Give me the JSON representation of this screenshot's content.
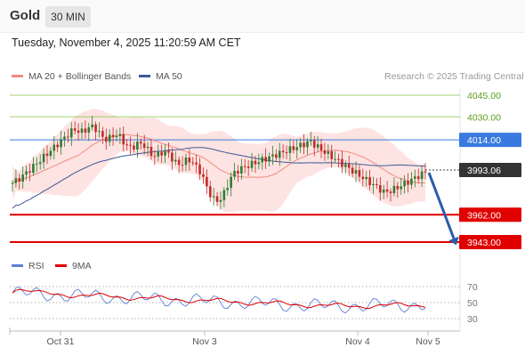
{
  "header": {
    "symbol": "Gold",
    "timeframe": "30 MIN"
  },
  "timestamp": "Tuesday, November 4, 2025 11:20:59 AM CET",
  "legend_main": {
    "ma20_bb": "MA 20 + Bollinger Bands",
    "ma50": "MA 50",
    "ma20_color": "#f28b82",
    "ma50_color": "#3d5a99"
  },
  "credit": "Research © 2025 Trading Central",
  "legend_rsi": {
    "rsi": "RSI",
    "ma9": "9MA",
    "rsi_color": "#5b7fd6",
    "ma9_color": "#e00000"
  },
  "chart_data": [
    {
      "type": "candlestick",
      "x_ticks": [
        "Oct 31",
        "Nov 3",
        "Nov 4",
        "Nov 5"
      ],
      "levels": [
        {
          "value": 4045.0,
          "label": "4045.00",
          "kind": "resistance",
          "color": "#7cbf3a"
        },
        {
          "value": 4030.0,
          "label": "4030.00",
          "kind": "resistance",
          "color": "#7cbf3a"
        },
        {
          "value": 4014.0,
          "label": "4014.00",
          "kind": "pivot",
          "color": "#3a7ae0"
        },
        {
          "value": 3962.0,
          "label": "3962.00",
          "kind": "support",
          "color": "#e00000"
        },
        {
          "value": 3943.0,
          "label": "3943.00",
          "kind": "support",
          "color": "#e00000"
        }
      ],
      "last_price": {
        "value": 3993.06,
        "label": "3993.06"
      },
      "forecast_arrow": {
        "from": 3993.06,
        "to": 3943.0,
        "color": "#2b5ca8"
      },
      "ylim": [
        3935,
        4052
      ],
      "up_color": "#2e7d32",
      "down_color": "#c62828"
    },
    {
      "type": "line",
      "title": "RSI",
      "y_ticks": [
        70,
        50,
        30
      ],
      "ylim": [
        20,
        80
      ],
      "series": [
        {
          "name": "RSI",
          "color": "#5b7fd6"
        },
        {
          "name": "9MA",
          "color": "#e00000"
        }
      ]
    }
  ]
}
